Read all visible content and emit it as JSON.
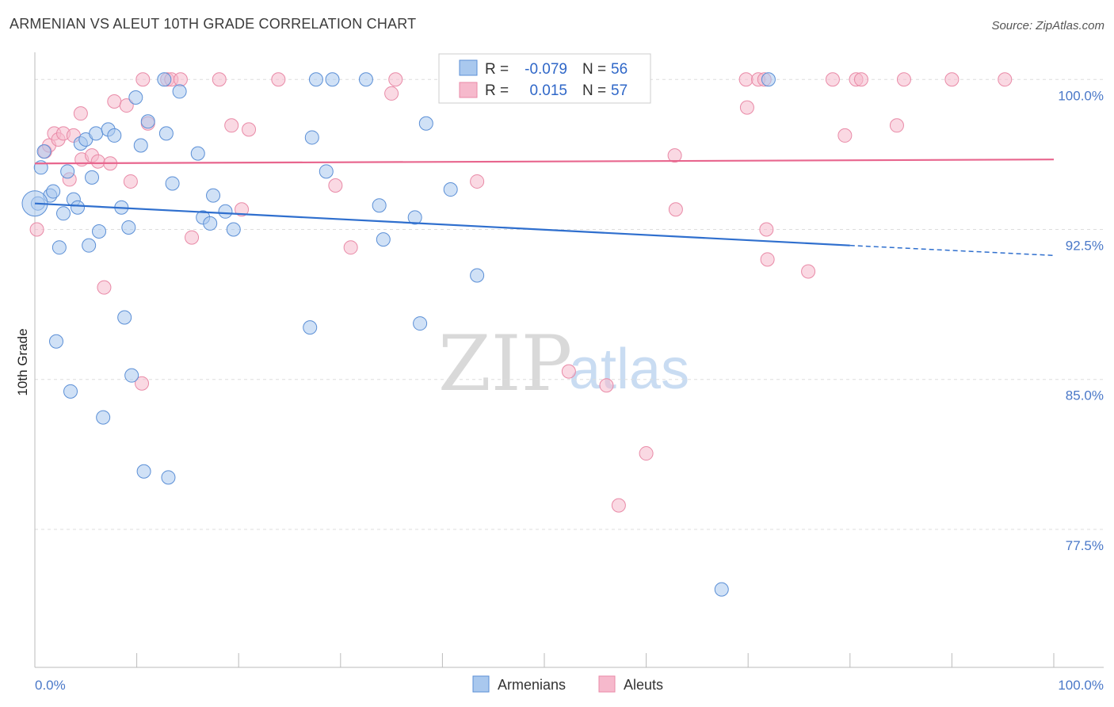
{
  "header": {
    "title": "ARMENIAN VS ALEUT 10TH GRADE CORRELATION CHART",
    "source": "Source: ZipAtlas.com"
  },
  "watermark": {
    "zip": "ZIP",
    "atlas": "atlas"
  },
  "legend_box": {
    "rows": [
      {
        "r_label": "R =",
        "r_value": "-0.079",
        "n_label": "N =",
        "n_value": "56",
        "color": "#a9c8ee"
      },
      {
        "r_label": "R =",
        "r_value": "0.015",
        "n_label": "N =",
        "n_value": "57",
        "color": "#f6b9cc"
      }
    ]
  },
  "bottom_legend": {
    "armenians": "Armenians",
    "aleuts": "Aleuts"
  },
  "chart_data": {
    "type": "scatter",
    "title": "ARMENIAN VS ALEUT 10TH GRADE CORRELATION CHART",
    "xlabel": "",
    "ylabel": "10th Grade",
    "xlim": [
      0,
      100
    ],
    "ylim": [
      70.6,
      101.2
    ],
    "x_tick_labels": [
      "0.0%",
      "100.0%"
    ],
    "y_ticks": [
      100.0,
      92.5,
      85.0,
      77.5
    ],
    "y_tick_labels": [
      "100.0%",
      "92.5%",
      "85.0%",
      "77.5%"
    ],
    "grid": true,
    "legend_position": "top-center",
    "series": [
      {
        "name": "Armenians",
        "color": "#a9c8ee",
        "stroke": "#5b8fd6",
        "line_color": "#2f6fce",
        "trend": {
          "x0": 0,
          "y0": 93.8,
          "x1": 80,
          "y1": 91.7,
          "x_dash_end": 100,
          "y_dash_end": 91.2
        },
        "points": [
          [
            0.3,
            93.8
          ],
          [
            0.6,
            95.6
          ],
          [
            0.9,
            96.4
          ],
          [
            1.5,
            94.2
          ],
          [
            1.8,
            94.4
          ],
          [
            2.1,
            86.9
          ],
          [
            2.4,
            91.6
          ],
          [
            2.8,
            93.3
          ],
          [
            3.2,
            95.4
          ],
          [
            3.5,
            84.4
          ],
          [
            3.8,
            94.0
          ],
          [
            4.2,
            93.6
          ],
          [
            4.5,
            96.8
          ],
          [
            5.0,
            97.0
          ],
          [
            5.3,
            91.7
          ],
          [
            5.6,
            95.1
          ],
          [
            6.0,
            97.3
          ],
          [
            6.3,
            92.4
          ],
          [
            6.7,
            83.1
          ],
          [
            7.2,
            97.5
          ],
          [
            7.8,
            97.2
          ],
          [
            8.5,
            93.6
          ],
          [
            8.8,
            88.1
          ],
          [
            9.2,
            92.6
          ],
          [
            9.5,
            85.2
          ],
          [
            9.9,
            99.1
          ],
          [
            10.4,
            96.7
          ],
          [
            10.7,
            80.4
          ],
          [
            11.1,
            97.9
          ],
          [
            12.7,
            100.0
          ],
          [
            12.9,
            97.3
          ],
          [
            13.1,
            80.1
          ],
          [
            13.5,
            94.8
          ],
          [
            14.2,
            99.4
          ],
          [
            16.0,
            96.3
          ],
          [
            16.5,
            93.1
          ],
          [
            17.2,
            92.8
          ],
          [
            17.5,
            94.2
          ],
          [
            18.7,
            93.4
          ],
          [
            19.5,
            92.5
          ],
          [
            27.0,
            87.6
          ],
          [
            27.2,
            97.1
          ],
          [
            27.6,
            100.0
          ],
          [
            28.6,
            95.4
          ],
          [
            29.2,
            100.0
          ],
          [
            32.5,
            100.0
          ],
          [
            33.8,
            93.7
          ],
          [
            34.2,
            92.0
          ],
          [
            37.3,
            93.1
          ],
          [
            37.8,
            87.8
          ],
          [
            38.4,
            97.8
          ],
          [
            40.8,
            94.5
          ],
          [
            43.4,
            90.2
          ],
          [
            67.4,
            74.5
          ],
          [
            72.0,
            100.0
          ],
          [
            0.0,
            93.8
          ]
        ]
      },
      {
        "name": "Aleuts",
        "color": "#f6b9cc",
        "stroke": "#e98aa7",
        "line_color": "#e8668e",
        "trend": {
          "x0": 0,
          "y0": 95.8,
          "x1": 100,
          "y1": 96.0
        },
        "points": [
          [
            0.2,
            92.5
          ],
          [
            1.0,
            96.4
          ],
          [
            1.4,
            96.7
          ],
          [
            1.9,
            97.3
          ],
          [
            2.3,
            97.0
          ],
          [
            2.8,
            97.3
          ],
          [
            3.4,
            95.0
          ],
          [
            3.8,
            97.2
          ],
          [
            4.6,
            96.0
          ],
          [
            4.5,
            98.3
          ],
          [
            5.6,
            96.2
          ],
          [
            6.2,
            95.9
          ],
          [
            6.8,
            89.6
          ],
          [
            7.4,
            95.8
          ],
          [
            7.8,
            98.9
          ],
          [
            9.0,
            98.7
          ],
          [
            9.4,
            94.9
          ],
          [
            10.5,
            84.8
          ],
          [
            10.6,
            100.0
          ],
          [
            11.1,
            97.8
          ],
          [
            13.0,
            100.0
          ],
          [
            13.4,
            100.0
          ],
          [
            14.3,
            100.0
          ],
          [
            15.4,
            92.1
          ],
          [
            18.1,
            100.0
          ],
          [
            19.3,
            97.7
          ],
          [
            20.3,
            93.5
          ],
          [
            21.0,
            97.5
          ],
          [
            23.9,
            100.0
          ],
          [
            29.5,
            94.7
          ],
          [
            31.0,
            91.6
          ],
          [
            35.0,
            99.3
          ],
          [
            35.4,
            100.0
          ],
          [
            43.4,
            94.9
          ],
          [
            47.2,
            100.0
          ],
          [
            52.4,
            85.4
          ],
          [
            55.5,
            100.0
          ],
          [
            56.1,
            84.7
          ],
          [
            57.3,
            78.7
          ],
          [
            60.0,
            81.3
          ],
          [
            62.8,
            96.2
          ],
          [
            62.9,
            93.5
          ],
          [
            69.8,
            100.0
          ],
          [
            71.0,
            100.0
          ],
          [
            69.9,
            98.6
          ],
          [
            71.6,
            100.0
          ],
          [
            71.8,
            92.5
          ],
          [
            71.9,
            91.0
          ],
          [
            75.9,
            90.4
          ],
          [
            78.3,
            100.0
          ],
          [
            79.5,
            97.2
          ],
          [
            80.6,
            100.0
          ],
          [
            81.1,
            100.0
          ],
          [
            84.6,
            97.7
          ],
          [
            85.3,
            100.0
          ],
          [
            90.0,
            100.0
          ],
          [
            95.2,
            100.0
          ]
        ]
      }
    ]
  }
}
